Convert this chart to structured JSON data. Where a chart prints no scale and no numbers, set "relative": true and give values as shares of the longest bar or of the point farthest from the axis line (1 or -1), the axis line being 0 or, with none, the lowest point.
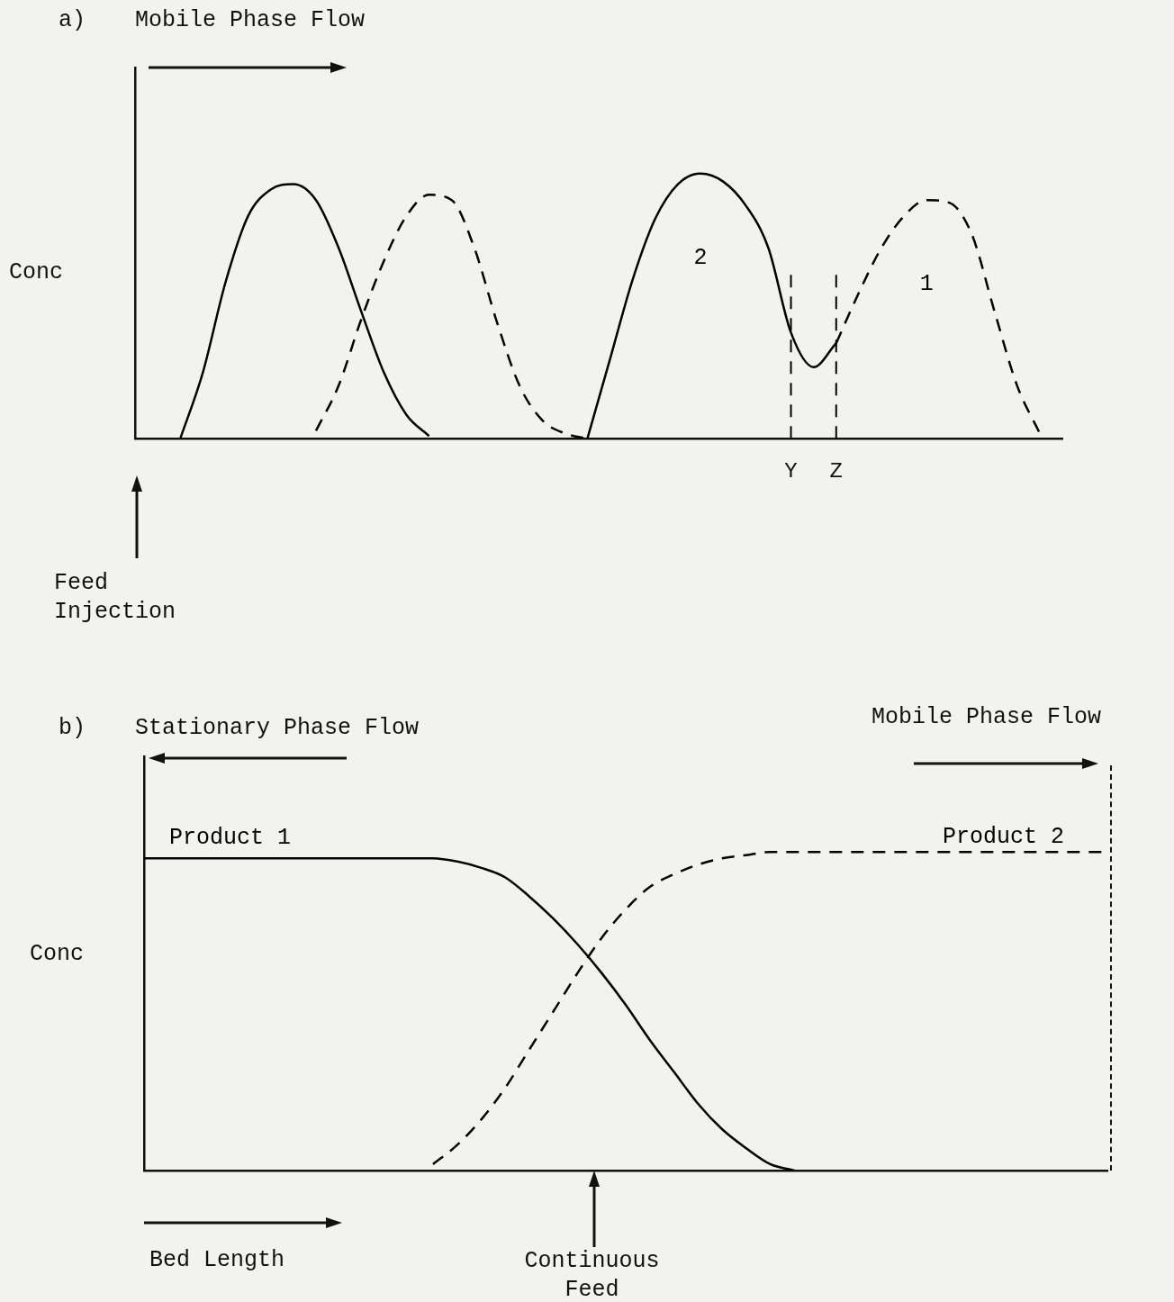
{
  "chart_data": [
    {
      "type": "line",
      "title": "a)",
      "ylabel": "Conc",
      "relative": true,
      "tick_labels": "x",
      "legend": false,
      "marker": "none",
      "grid": false,
      "annotations": [
        "Mobile Phase Flow",
        "Feed Injection"
      ],
      "categories": [
        null,
        null,
        null,
        null,
        null,
        null,
        null,
        null,
        null,
        null,
        null,
        null,
        null,
        null,
        null,
        null,
        null,
        null,
        null,
        null,
        null,
        null,
        null,
        null,
        null,
        null,
        null,
        null,
        null,
        "Y",
        null,
        "Z",
        null,
        null,
        null,
        null,
        null,
        null,
        null,
        null,
        null,
        null
      ],
      "ref_lines": [
        {
          "axis": "x",
          "value": "Y",
          "line_style": "dashed",
          "color": "#000000"
        },
        {
          "axis": "x",
          "value": "Z",
          "line_style": "dashed",
          "color": "#000000"
        }
      ],
      "series": [
        {
          "color": "#000000",
          "line_style": "solid",
          "values": [
            null,
            null,
            0,
            0.25,
            0.59,
            0.84,
            0.94,
            0.96,
            0.9,
            0.72,
            0.48,
            0.25,
            0.09,
            0.01,
            null,
            null,
            null,
            null,
            null,
            null,
            null,
            null,
            null,
            null,
            null,
            null,
            null,
            null,
            null,
            null,
            null,
            null,
            null,
            null,
            null,
            null,
            null,
            null,
            null,
            null,
            null,
            null
          ]
        },
        {
          "color": "#000000",
          "line_style": "dashed",
          "values": [
            null,
            null,
            null,
            null,
            null,
            null,
            null,
            null,
            0.03,
            0.2,
            0.45,
            0.67,
            0.84,
            0.92,
            0.9,
            0.72,
            0.44,
            0.2,
            0.07,
            0.02,
            0,
            null,
            null,
            null,
            null,
            null,
            null,
            null,
            null,
            null,
            null,
            null,
            null,
            null,
            null,
            null,
            null,
            null,
            null,
            null,
            null,
            null
          ]
        },
        {
          "name": "2",
          "color": "#000000",
          "line_style": "solid",
          "values": [
            null,
            null,
            null,
            null,
            null,
            null,
            null,
            null,
            null,
            null,
            null,
            null,
            null,
            null,
            null,
            null,
            null,
            null,
            null,
            null,
            0,
            0.3,
            0.6,
            0.83,
            0.96,
            1,
            0.97,
            0.88,
            0.72,
            0.4,
            0.27,
            0.36,
            null,
            null,
            null,
            null,
            null,
            null,
            null,
            null,
            null,
            null
          ]
        },
        {
          "name": "1",
          "color": "#000000",
          "line_style": "dashed",
          "values": [
            null,
            null,
            null,
            null,
            null,
            null,
            null,
            null,
            null,
            null,
            null,
            null,
            null,
            null,
            null,
            null,
            null,
            null,
            null,
            null,
            null,
            null,
            null,
            null,
            null,
            null,
            null,
            null,
            null,
            null,
            null,
            0.36,
            0.55,
            0.72,
            0.84,
            0.9,
            0.89,
            0.77,
            0.48,
            0.2,
            0.02,
            null
          ]
        }
      ]
    },
    {
      "type": "line",
      "title": "b)",
      "ylabel": "Conc",
      "relative": true,
      "tick_labels": false,
      "legend": false,
      "marker": "none",
      "grid": false,
      "annotations": [
        "Stationary Phase Flow",
        "Mobile Phase Flow",
        "Bed Length",
        "Continuous Feed"
      ],
      "categories": [
        null,
        null,
        null,
        null,
        null,
        null,
        null,
        null,
        null,
        null,
        null,
        null,
        null,
        null,
        null,
        null,
        null,
        null,
        null,
        null,
        null,
        null,
        null,
        null,
        null,
        null,
        null,
        null,
        null,
        null,
        null,
        null,
        null,
        null,
        null,
        null,
        null,
        null,
        null,
        null,
        null
      ],
      "series": [
        {
          "name": "Product 1",
          "color": "#000000",
          "line_style": "solid",
          "values": [
            0.98,
            0.98,
            0.98,
            0.98,
            0.98,
            0.98,
            0.98,
            0.98,
            0.98,
            0.98,
            0.98,
            0.98,
            0.98,
            0.97,
            0.95,
            0.92,
            0.86,
            0.79,
            0.71,
            0.62,
            0.52,
            0.41,
            0.31,
            0.21,
            0.13,
            0.07,
            0.02,
            0,
            null,
            null,
            null,
            null,
            null,
            null,
            null,
            null,
            null,
            null,
            null,
            null,
            null
          ]
        },
        {
          "name": "Product 2",
          "color": "#000000",
          "line_style": "dashed",
          "values": [
            null,
            null,
            null,
            null,
            null,
            null,
            null,
            null,
            null,
            null,
            null,
            null,
            0.02,
            0.08,
            0.16,
            0.26,
            0.38,
            0.5,
            0.62,
            0.73,
            0.82,
            0.89,
            0.93,
            0.96,
            0.98,
            0.99,
            1,
            1,
            1,
            1,
            1,
            1,
            1,
            1,
            1,
            1,
            1,
            1,
            1,
            1,
            1
          ]
        }
      ]
    }
  ]
}
